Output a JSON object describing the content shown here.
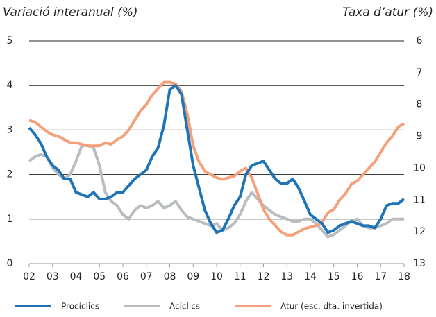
{
  "chart_data": {
    "type": "line",
    "title_left": "Variació interanual (%)",
    "title_right": "Taxa d’atur (%)",
    "xlim": [
      2,
      18
    ],
    "xticks": [
      {
        "value": 2,
        "label": "02"
      },
      {
        "value": 3,
        "label": "03"
      },
      {
        "value": 4,
        "label": "04"
      },
      {
        "value": 5,
        "label": "05"
      },
      {
        "value": 6,
        "label": "06"
      },
      {
        "value": 7,
        "label": "07"
      },
      {
        "value": 8,
        "label": "08"
      },
      {
        "value": 9,
        "label": "09"
      },
      10,
      11,
      12,
      13,
      14,
      15,
      16,
      17,
      18
    ],
    "ylim": [
      0,
      5
    ],
    "yticks": [
      0,
      1,
      2,
      3,
      4,
      5
    ],
    "y2lim": [
      6,
      13
    ],
    "y2ticks": [
      6,
      7,
      8,
      9,
      10,
      11,
      12,
      13
    ],
    "y2_inverted": true,
    "grid": true,
    "legend": "bottom",
    "x": [
      2,
      2.25,
      2.5,
      2.75,
      3,
      3.25,
      3.5,
      3.75,
      4,
      4.25,
      4.5,
      4.75,
      5,
      5.25,
      5.5,
      5.75,
      6,
      6.25,
      6.5,
      6.75,
      7,
      7.25,
      7.5,
      7.75,
      8,
      8.25,
      8.5,
      8.75,
      9,
      9.25,
      9.5,
      9.75,
      10,
      10.25,
      10.5,
      10.75,
      11,
      11.25,
      11.5,
      11.75,
      12,
      12.25,
      12.5,
      12.75,
      13,
      13.25,
      13.5,
      13.75,
      14,
      14.25,
      14.5,
      14.75,
      15,
      15.25,
      15.5,
      15.75,
      16,
      16.25,
      16.5,
      16.75,
      17,
      17.25,
      17.5,
      17.75,
      18
    ],
    "series": [
      {
        "name": "Procíclics",
        "color": "#1f74b8",
        "values": [
          3.05,
          2.9,
          2.7,
          2.4,
          2.2,
          2.1,
          1.9,
          1.9,
          1.6,
          1.55,
          1.5,
          1.6,
          1.45,
          1.45,
          1.5,
          1.6,
          1.6,
          1.75,
          1.9,
          2.0,
          2.1,
          2.4,
          2.6,
          3.1,
          3.9,
          4.0,
          3.8,
          3.0,
          2.2,
          1.7,
          1.2,
          0.9,
          0.7,
          0.75,
          1.0,
          1.3,
          1.5,
          2.0,
          2.2,
          2.25,
          2.3,
          2.1,
          1.9,
          1.8,
          1.8,
          1.9,
          1.7,
          1.4,
          1.1,
          1.0,
          0.9,
          0.7,
          0.75,
          0.85,
          0.9,
          0.95,
          0.9,
          0.85,
          0.85,
          0.8,
          1.0,
          1.3,
          1.35,
          1.35,
          1.45
        ]
      },
      {
        "name": "Acíclics",
        "color": "#b9bdc0",
        "values": [
          2.3,
          2.4,
          2.45,
          2.4,
          2.15,
          2.0,
          1.9,
          2.0,
          2.3,
          2.65,
          2.65,
          2.6,
          2.2,
          1.6,
          1.4,
          1.3,
          1.1,
          1.0,
          1.2,
          1.3,
          1.25,
          1.3,
          1.4,
          1.25,
          1.3,
          1.4,
          1.2,
          1.05,
          1.0,
          0.95,
          0.9,
          0.85,
          0.9,
          0.75,
          0.8,
          0.9,
          1.1,
          1.4,
          1.6,
          1.45,
          1.3,
          1.2,
          1.1,
          1.05,
          1.0,
          0.95,
          0.95,
          1.0,
          1.0,
          0.9,
          0.75,
          0.6,
          0.65,
          0.75,
          0.85,
          0.95,
          1.0,
          0.85,
          0.8,
          0.8,
          0.85,
          0.9,
          1.0,
          1.0,
          1.0
        ]
      },
      {
        "name": "Atur (esc. dta. invertida)",
        "color": "#f4a07a",
        "axis": "y2",
        "values": [
          8.5,
          8.55,
          8.7,
          8.85,
          8.95,
          9.0,
          9.1,
          9.2,
          9.2,
          9.25,
          9.3,
          9.3,
          9.3,
          9.2,
          9.25,
          9.1,
          9.0,
          8.8,
          8.5,
          8.2,
          8.0,
          7.7,
          7.5,
          7.3,
          7.3,
          7.35,
          7.6,
          8.3,
          9.3,
          9.8,
          10.1,
          10.2,
          10.3,
          10.35,
          10.3,
          10.25,
          10.1,
          10.0,
          10.3,
          10.8,
          11.3,
          11.6,
          11.8,
          12.0,
          12.1,
          12.1,
          12.0,
          11.9,
          11.85,
          11.8,
          11.7,
          11.4,
          11.3,
          11.0,
          10.8,
          10.5,
          10.4,
          10.2,
          10.0,
          9.8,
          9.5,
          9.2,
          9.0,
          8.7,
          8.6
        ]
      }
    ]
  }
}
